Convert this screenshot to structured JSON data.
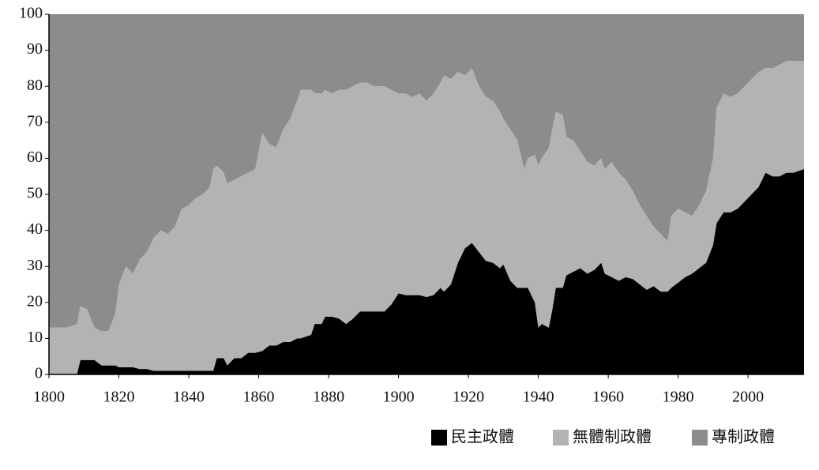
{
  "chart_data": {
    "type": "stacked-area",
    "x": [
      1800,
      1805,
      1808,
      1809,
      1811,
      1813,
      1815,
      1817,
      1819,
      1820,
      1822,
      1824,
      1826,
      1828,
      1830,
      1832,
      1834,
      1836,
      1838,
      1840,
      1842,
      1844,
      1846,
      1847,
      1848,
      1850,
      1851,
      1853,
      1855,
      1857,
      1859,
      1861,
      1863,
      1865,
      1867,
      1869,
      1871,
      1872,
      1875,
      1876,
      1878,
      1879,
      1881,
      1883,
      1885,
      1887,
      1889,
      1891,
      1893,
      1896,
      1898,
      1900,
      1902,
      1904,
      1906,
      1908,
      1910,
      1912,
      1913,
      1915,
      1917,
      1919,
      1921,
      1923,
      1925,
      1927,
      1929,
      1930,
      1932,
      1934,
      1936,
      1937,
      1939,
      1940,
      1941,
      1943,
      1944,
      1945,
      1947,
      1948,
      1950,
      1952,
      1954,
      1956,
      1958,
      1959,
      1961,
      1963,
      1965,
      1967,
      1969,
      1971,
      1973,
      1975,
      1977,
      1978,
      1980,
      1982,
      1984,
      1986,
      1988,
      1990,
      1991,
      1993,
      1995,
      1997,
      1999,
      2001,
      2003,
      2005,
      2007,
      2009,
      2011,
      2013,
      2016
    ],
    "series": [
      {
        "name": "民主政體",
        "color": "#000000",
        "values": [
          0,
          0,
          0,
          4,
          4,
          4,
          2.5,
          2.5,
          2.5,
          2,
          2,
          2,
          1.5,
          1.5,
          1,
          1,
          1,
          1,
          1,
          1,
          1,
          1,
          1,
          1,
          4.5,
          4.5,
          2.5,
          4.5,
          4.5,
          6,
          6,
          6.5,
          8,
          8,
          9,
          9,
          10,
          10,
          11,
          14,
          14,
          16,
          16,
          15.5,
          14,
          15.5,
          17.5,
          17.5,
          17.5,
          17.5,
          19.5,
          22.5,
          22,
          22,
          22,
          21.5,
          22,
          24,
          23,
          25,
          31,
          35,
          36.5,
          34,
          31.5,
          31,
          29.5,
          30.5,
          26,
          24,
          24,
          24,
          20,
          13,
          14,
          13,
          18,
          24,
          24,
          27.5,
          28.5,
          29.5,
          28,
          29,
          31,
          28,
          27,
          26,
          27,
          26.5,
          25,
          23.5,
          24.5,
          23,
          23,
          24,
          25.5,
          27,
          28,
          29.5,
          31,
          36,
          42,
          45,
          45,
          46,
          48,
          50,
          52,
          56,
          55,
          55,
          56,
          56,
          57
        ]
      },
      {
        "name": "無體制政體",
        "color": "#b3b3b3",
        "values": [
          13,
          13,
          14,
          15,
          14,
          9,
          9.5,
          9.5,
          14.5,
          23,
          28,
          26,
          30.5,
          32.5,
          37,
          39,
          38,
          40,
          45,
          46,
          48,
          49,
          51,
          56,
          53.5,
          51.5,
          50.5,
          49.5,
          50.5,
          50,
          51,
          60.5,
          56,
          55,
          59,
          62,
          66,
          69,
          68,
          64,
          64,
          63,
          62,
          63.5,
          65,
          64.5,
          63.5,
          63.5,
          62.5,
          62.5,
          59.5,
          55.5,
          56,
          55,
          56,
          54.5,
          56,
          57,
          60,
          57,
          53,
          48,
          48.5,
          46,
          45.5,
          45,
          43.5,
          40.5,
          42,
          41,
          33,
          36,
          41,
          45,
          46,
          50,
          50,
          49,
          48,
          38.5,
          36.5,
          32.5,
          31,
          29,
          29,
          29,
          32,
          30,
          27,
          24.5,
          22,
          20.5,
          16.5,
          16,
          14,
          20,
          20.5,
          18,
          16,
          17.5,
          20,
          24,
          32,
          33,
          32,
          32,
          32,
          32,
          32,
          29,
          30,
          31,
          31,
          31,
          30
        ]
      },
      {
        "name": "專制政體",
        "color": "#8c8c8c",
        "values": [
          87,
          87,
          86,
          81,
          82,
          87,
          88,
          88,
          83,
          75,
          70,
          72,
          68,
          66,
          62,
          60,
          61,
          59,
          54,
          53,
          51,
          50,
          48,
          43,
          42,
          44,
          47,
          46,
          45,
          44,
          43,
          33,
          36,
          37,
          32,
          29,
          24,
          21,
          21,
          22,
          22,
          21,
          22,
          21,
          21,
          20,
          19,
          19,
          20,
          20,
          21,
          22,
          22,
          23,
          22,
          24,
          22,
          19,
          17,
          18,
          16,
          17,
          15,
          20,
          23,
          24,
          27,
          29,
          32,
          35,
          43,
          40,
          39,
          42,
          40,
          37,
          32,
          27,
          28,
          34,
          35,
          38,
          41,
          42,
          40,
          43,
          41,
          44,
          46,
          49,
          53,
          56,
          59,
          61,
          63,
          56,
          54,
          55,
          56,
          53,
          49,
          40,
          26,
          22,
          23,
          22,
          20,
          18,
          16,
          15,
          15,
          14,
          13,
          13,
          13
        ]
      }
    ],
    "xlim": [
      1800,
      2016
    ],
    "ylim": [
      0,
      100
    ],
    "xticks": [
      1800,
      1820,
      1840,
      1860,
      1880,
      1900,
      1920,
      1940,
      1960,
      1980,
      2000
    ],
    "yticks": [
      0,
      10,
      20,
      30,
      40,
      50,
      60,
      70,
      80,
      90,
      100
    ],
    "legend": "bottom-right"
  }
}
